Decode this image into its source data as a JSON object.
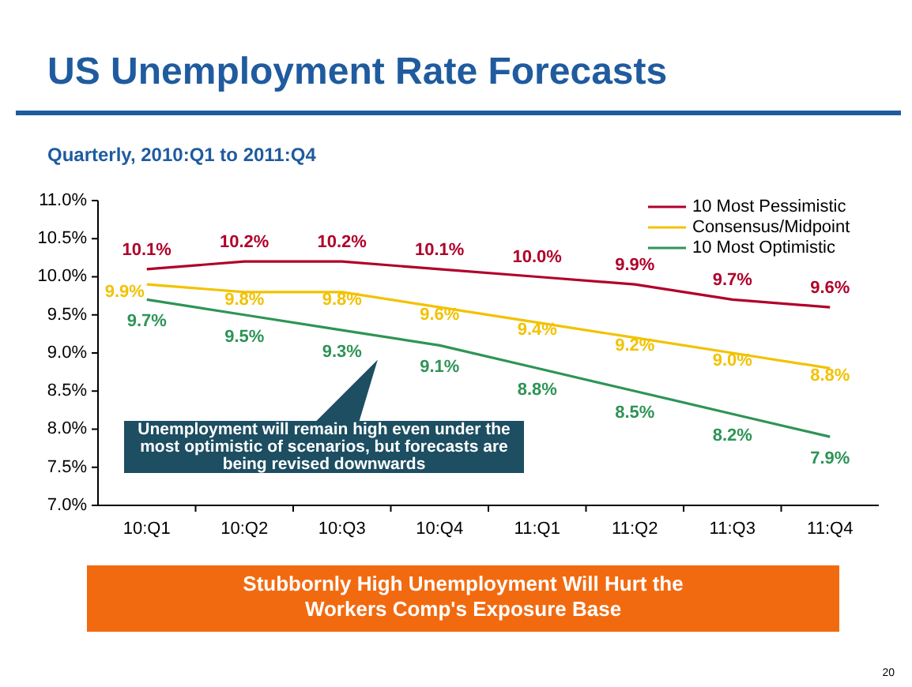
{
  "chart_data": {
    "type": "line",
    "title": "US Unemployment Rate Forecasts",
    "subtitle": "Quarterly, 2010:Q1 to 2011:Q4",
    "categories": [
      "10:Q1",
      "10:Q2",
      "10:Q3",
      "10:Q4",
      "11:Q1",
      "11:Q2",
      "11:Q3",
      "11:Q4"
    ],
    "series": [
      {
        "name": "10 Most Pessimistic",
        "color": "#b0002a",
        "values": [
          10.1,
          10.2,
          10.2,
          10.1,
          10.0,
          9.9,
          9.7,
          9.6
        ],
        "value_labels": [
          "10.1%",
          "10.2%",
          "10.2%",
          "10.1%",
          "10.0%",
          "9.9%",
          "9.7%",
          "9.6%"
        ]
      },
      {
        "name": "Consensus/Midpoint",
        "color": "#f2c200",
        "values": [
          9.9,
          9.8,
          9.8,
          9.6,
          9.4,
          9.2,
          9.0,
          8.8
        ],
        "value_labels": [
          "9.9%",
          "9.8%",
          "9.8%",
          "9.6%",
          "9.4%",
          "9.2%",
          "9.0%",
          "8.8%"
        ]
      },
      {
        "name": "10 Most Optimistic",
        "color": "#2e9456",
        "values": [
          9.7,
          9.5,
          9.3,
          9.1,
          8.8,
          8.5,
          8.2,
          7.9
        ],
        "value_labels": [
          "9.7%",
          "9.5%",
          "9.3%",
          "9.1%",
          "8.8%",
          "8.5%",
          "8.2%",
          "7.9%"
        ]
      }
    ],
    "ylim": [
      7.0,
      11.0
    ],
    "yticks": [
      {
        "value": 7.0,
        "label": "7.0%"
      },
      {
        "value": 7.5,
        "label": "7.5%"
      },
      {
        "value": 8.0,
        "label": "8.0%"
      },
      {
        "value": 8.5,
        "label": "8.5%"
      },
      {
        "value": 9.0,
        "label": "9.0%"
      },
      {
        "value": 9.5,
        "label": "9.5%"
      },
      {
        "value": 10.0,
        "label": "10.0%"
      },
      {
        "value": 10.5,
        "label": "10.5%"
      },
      {
        "value": 11.0,
        "label": "11.0%"
      }
    ],
    "grid": false,
    "legend": "top right",
    "marker": "none",
    "line_style": "solid",
    "annotations": [
      "Unemployment  will remain high even under the most optimistic of scenarios, but forecasts are being revised downwards",
      "Stubbornly High Unemployment Will Hurt the Workers Comp's Exposure Base",
      "20"
    ]
  }
}
